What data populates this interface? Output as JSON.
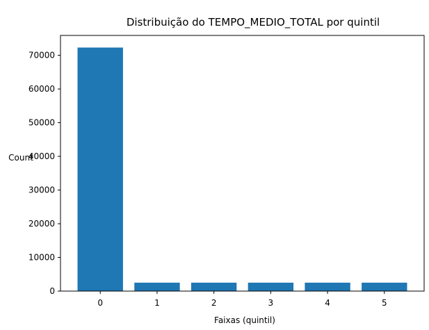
{
  "chart_data": {
    "type": "bar",
    "title": "Distribuição do TEMPO_MEDIO_TOTAL por quintil",
    "xlabel": "Faixas (quintil)",
    "ylabel": "Count",
    "categories": [
      "0",
      "1",
      "2",
      "3",
      "4",
      "5"
    ],
    "values": [
      72300,
      2500,
      2500,
      2500,
      2500,
      2500
    ],
    "ylim": [
      0,
      75900
    ],
    "yticks": [
      0,
      10000,
      20000,
      30000,
      40000,
      50000,
      60000,
      70000
    ],
    "ytick_labels": [
      "0",
      "10000",
      "20000",
      "30000",
      "40000",
      "50000",
      "60000",
      "70000"
    ],
    "grid": false,
    "bar_color": "#1f77b4"
  }
}
